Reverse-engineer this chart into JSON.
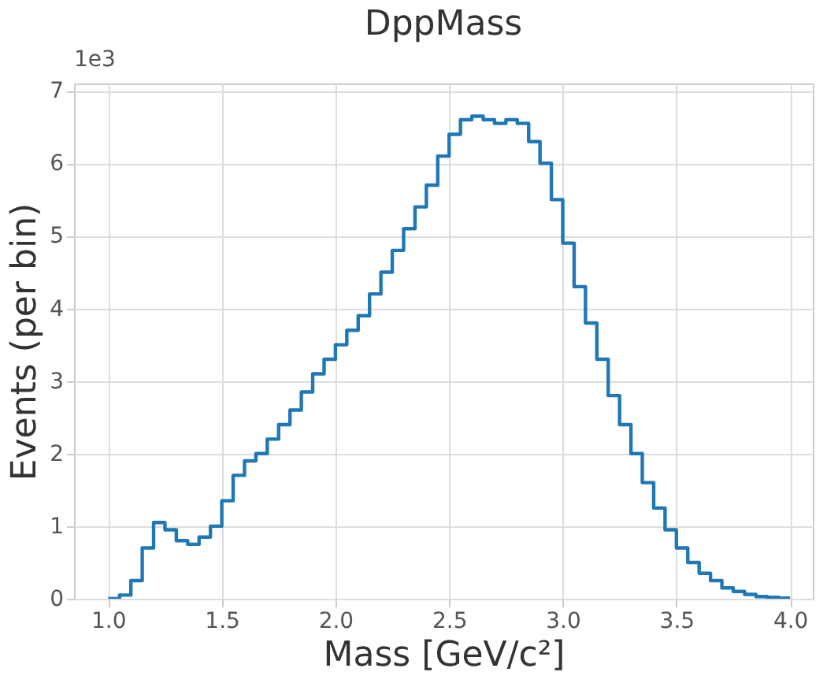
{
  "chart_data": {
    "type": "histogram",
    "title": "DppMass",
    "xlabel": "Mass [GeV/c²]",
    "ylabel": "Events (per bin)",
    "annotations": [
      "1e3"
    ],
    "bins": [
      1.0,
      1.05,
      1.1,
      1.15,
      1.2,
      1.25,
      1.3,
      1.35,
      1.4,
      1.45,
      1.5,
      1.55,
      1.6,
      1.65,
      1.7,
      1.75,
      1.8,
      1.85,
      1.9,
      1.95,
      2.0,
      2.05,
      2.1,
      2.15,
      2.2,
      2.25,
      2.3,
      2.35,
      2.4,
      2.45,
      2.5,
      2.55,
      2.6,
      2.65,
      2.7,
      2.75,
      2.8,
      2.85,
      2.9,
      2.95,
      3.0,
      3.05,
      3.1,
      3.15,
      3.2,
      3.25,
      3.3,
      3.35,
      3.4,
      3.45,
      3.5,
      3.55,
      3.6,
      3.65,
      3.7,
      3.75,
      3.8,
      3.85,
      3.9,
      3.95,
      4.0
    ],
    "values": [
      0,
      0.05,
      0.25,
      0.7,
      1.05,
      0.95,
      0.8,
      0.75,
      0.85,
      1.0,
      1.35,
      1.7,
      1.9,
      2.0,
      2.2,
      2.4,
      2.6,
      2.85,
      3.1,
      3.3,
      3.5,
      3.7,
      3.9,
      4.2,
      4.5,
      4.8,
      5.1,
      5.4,
      5.7,
      6.1,
      6.4,
      6.6,
      6.65,
      6.6,
      6.55,
      6.6,
      6.55,
      6.3,
      6.0,
      5.5,
      4.9,
      4.3,
      3.8,
      3.3,
      2.8,
      2.4,
      2.0,
      1.6,
      1.25,
      0.95,
      0.7,
      0.5,
      0.35,
      0.25,
      0.15,
      0.1,
      0.06,
      0.03,
      0.02,
      0.01
    ],
    "color": "#1f77b4",
    "xlim": [
      0.85,
      4.1
    ],
    "xticks": [
      {
        "value": 1.0,
        "label": "1.0"
      },
      {
        "value": 1.5,
        "label": "1.5"
      },
      {
        "value": 2.0,
        "label": "2.0"
      },
      {
        "value": 2.5,
        "label": "2.5"
      },
      {
        "value": 3.0,
        "label": "3.0"
      },
      {
        "value": 3.5,
        "label": "3.5"
      },
      {
        "value": 4.0,
        "label": "4.0"
      }
    ],
    "ylim": [
      0,
      7.1
    ],
    "yticks": [
      0,
      1,
      2,
      3,
      4,
      5,
      6,
      7
    ],
    "grid": true
  }
}
